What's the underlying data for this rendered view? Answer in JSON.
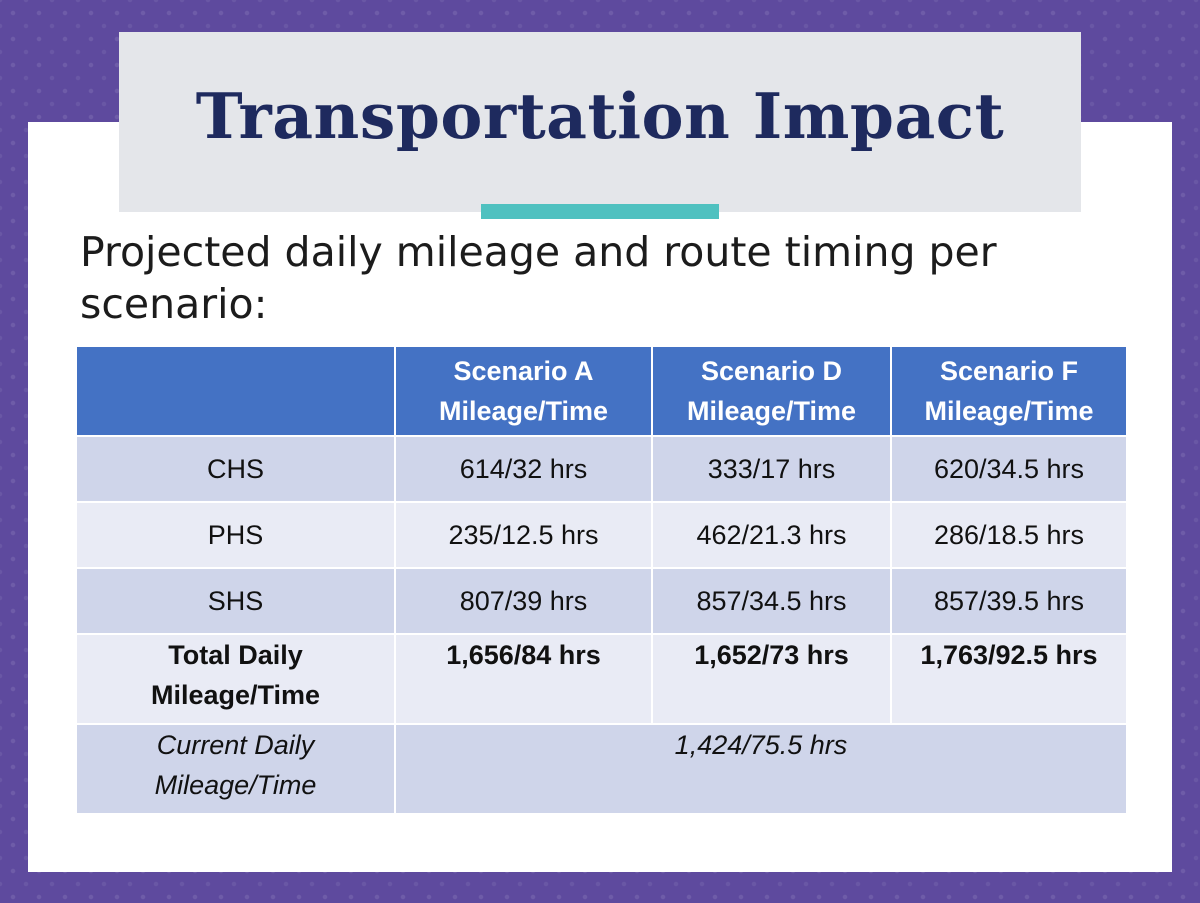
{
  "slide": {
    "title": "Transportation Impact",
    "subtitle": "Projected daily mileage and route timing per scenario:"
  },
  "table": {
    "headers": [
      "",
      "Scenario A Mileage/Time",
      "Scenario D Mileage/Time",
      "Scenario F Mileage/Time"
    ],
    "rows": [
      {
        "label": "CHS",
        "values": [
          "614/32 hrs",
          "333/17 hrs",
          "620/34.5 hrs"
        ]
      },
      {
        "label": "PHS",
        "values": [
          "235/12.5 hrs",
          "462/21.3 hrs",
          "286/18.5 hrs"
        ]
      },
      {
        "label": "SHS",
        "values": [
          "807/39 hrs",
          "857/34.5 hrs",
          "857/39.5 hrs"
        ]
      }
    ],
    "total": {
      "label": "Total Daily Mileage/Time",
      "values": [
        "1,656/84 hrs",
        "1,652/73 hrs",
        "1,763/92.5 hrs"
      ]
    },
    "current": {
      "label": "Current Daily Mileage/Time",
      "value": "1,424/75.5 hrs"
    }
  },
  "colors": {
    "frame": "#5e4a9e",
    "title_box": "#e4e6ea",
    "title_text": "#1e2a5e",
    "accent": "#4fc1c0",
    "header_bg": "#4472c4",
    "row_dark": "#cfd5ea",
    "row_light": "#e9ebf5"
  }
}
